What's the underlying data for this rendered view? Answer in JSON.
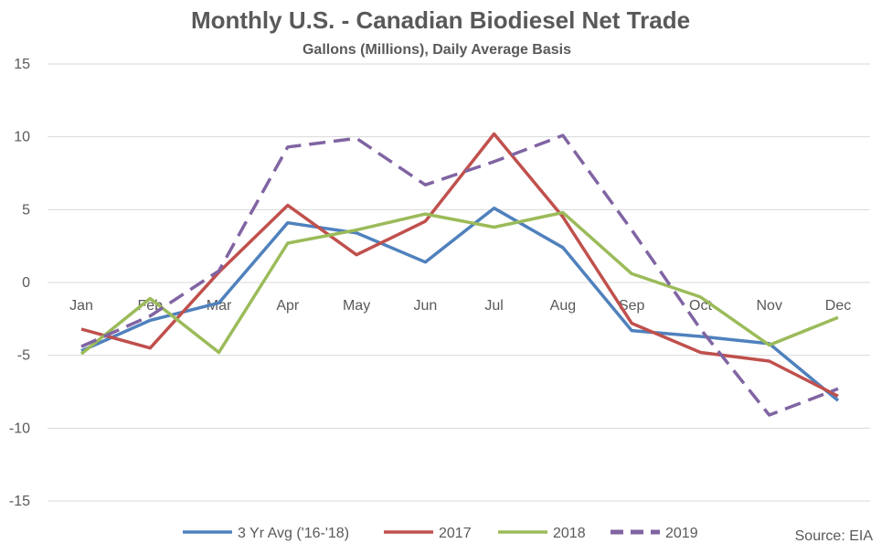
{
  "chart_data": {
    "type": "line",
    "title": "Monthly U.S. - Canadian Biodiesel Net Trade",
    "subtitle": "Gallons (Millions), Daily Average Basis",
    "source": "Source: EIA",
    "categories": [
      "Jan",
      "Feb",
      "Mar",
      "Apr",
      "May",
      "Jun",
      "Jul",
      "Aug",
      "Sep",
      "Oct",
      "Nov",
      "Dec"
    ],
    "ylim": [
      -15,
      15
    ],
    "yticks": [
      15,
      10,
      5,
      0,
      -5,
      -10,
      -15
    ],
    "grid": true,
    "legend_position": "bottom",
    "series": [
      {
        "name": "3 Yr Avg ('16-'18)",
        "color": "#4f81bd",
        "dash": "solid",
        "values": [
          -4.7,
          -2.6,
          -1.4,
          4.1,
          3.4,
          1.4,
          5.1,
          2.4,
          -3.3,
          -3.7,
          -4.2,
          -8.1
        ]
      },
      {
        "name": "2017",
        "color": "#c0504d",
        "dash": "solid",
        "values": [
          -3.2,
          -4.5,
          0.7,
          5.3,
          1.9,
          4.2,
          10.2,
          4.5,
          -2.8,
          -4.8,
          -5.4,
          -7.8
        ]
      },
      {
        "name": "2018",
        "color": "#9bbb59",
        "dash": "solid",
        "values": [
          -4.9,
          -1.1,
          -4.8,
          2.7,
          3.6,
          4.7,
          3.8,
          4.8,
          0.6,
          -1.0,
          -4.3,
          -2.4
        ]
      },
      {
        "name": "2019",
        "color": "#8064a2",
        "dash": "dashed",
        "values": [
          -4.4,
          -2.3,
          0.8,
          9.3,
          9.9,
          6.7,
          8.3,
          10.1,
          3.6,
          -3.2,
          -9.1,
          -7.3
        ]
      }
    ]
  }
}
